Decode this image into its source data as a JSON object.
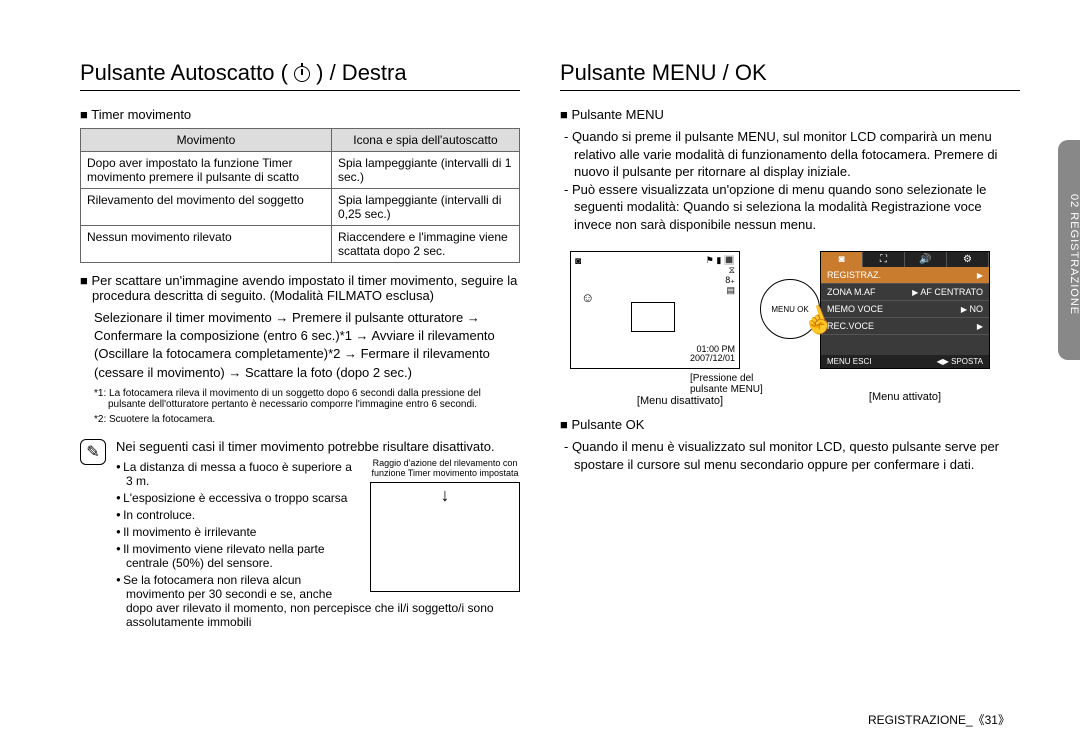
{
  "left": {
    "heading_prefix": "Pulsante Autoscatto ( ",
    "heading_suffix": " ) / Destra",
    "sub1": "Timer movimento",
    "table": {
      "head": [
        "Movimento",
        "Icona e spia dell'autoscatto"
      ],
      "rows": [
        [
          "Dopo aver impostato la funzione Timer movimento premere il pulsante di scatto",
          "Spia lampeggiante (intervalli di 1 sec.)"
        ],
        [
          "Rilevamento del movimento del soggetto",
          "Spia lampeggiante (intervalli di 0,25 sec.)"
        ],
        [
          "Nessun movimento rilevato",
          "Riaccendere e l'immagine viene scattata dopo 2 sec."
        ]
      ]
    },
    "para1": "Per scattare un'immagine avendo impostato il timer movimento, seguire la procedura descritta di seguito. (Modalità FILMATO esclusa)",
    "flow": "Selezionare il timer movimento → Premere il pulsante otturatore → Confermare la composizione (entro 6 sec.)*1 → Avviare il rilevamento (Oscillare la fotocamera completamente)*2 → Fermare il rilevamento (cessare il movimento) → Scattare la foto (dopo 2 sec.)",
    "fn1": "*1: La fotocamera rileva il movimento di un soggetto dopo 6 secondi dalla pressione del pulsante dell'otturatore pertanto è necessario comporre l'immagine entro 6 secondi.",
    "fn2": "*2: Scuotere la fotocamera.",
    "note_lead": "Nei seguenti casi il timer movimento potrebbe risultare disattivato.",
    "detect_caption": "Raggio d'azione del rilevamento con funzione Timer movimento impostata",
    "bullets": [
      "La distanza di messa a fuoco è superiore a 3 m.",
      "L'esposizione è eccessiva o troppo scarsa",
      "In controluce.",
      "Il movimento è irrilevante",
      "Il movimento viene rilevato nella parte centrale (50%) del sensore.",
      "Se la fotocamera non rileva alcun movimento per 30 secondi e se, anche dopo aver rilevato il momento, non percepisce che il/i soggetto/i sono assolutamente immobili"
    ]
  },
  "right": {
    "heading": "Pulsante MENU / OK",
    "sub_menu": "Pulsante MENU",
    "menu_p1": "- Quando si preme il pulsante MENU, sul monitor LCD comparirà un menu relativo alle varie modalità di funzionamento della fotocamera. Premere di nuovo il pulsante per ritornare al display iniziale.",
    "menu_p2": "- Può essere visualizzata un'opzione di menu quando sono selezionate le seguenti modalità: Quando si seleziona la modalità Registrazione voce invece non sarà disponibile nessun menu.",
    "screen_off": {
      "tl": "◙",
      "tr_lines": [
        "⚑ ▮ 🔳",
        "⧖",
        "8₊",
        "▤"
      ],
      "face": "☺",
      "br_lines": [
        "01:00 PM",
        "2007/12/01"
      ],
      "dial": "MENU\nOK",
      "press": "[Pressione del pulsante MENU]",
      "caption": "[Menu disattivato]"
    },
    "screen_on": {
      "tabs": [
        "◙",
        "⛶",
        "🔊",
        "⚙"
      ],
      "rows": [
        {
          "l": "REGISTRAZ.",
          "r": "",
          "hl": true
        },
        {
          "l": "ZONA M.AF",
          "r": "AF CENTRATO",
          "hl": false
        },
        {
          "l": "MEMO VOCE",
          "r": "NO",
          "hl": false
        },
        {
          "l": "REC.VOCE",
          "r": "",
          "hl": false
        }
      ],
      "foot": [
        "MENU  ESCI",
        "◀▶  SPOSTA"
      ],
      "caption": "[Menu attivato]"
    },
    "sub_ok": "Pulsante OK",
    "ok_p": "- Quando il menu è visualizzato sul monitor LCD, questo pulsante serve per spostare il cursore sul menu secondario oppure per confermare i dati."
  },
  "side_tab": "02 REGISTRAZIONE",
  "footer": "REGISTRAZIONE_《31》"
}
